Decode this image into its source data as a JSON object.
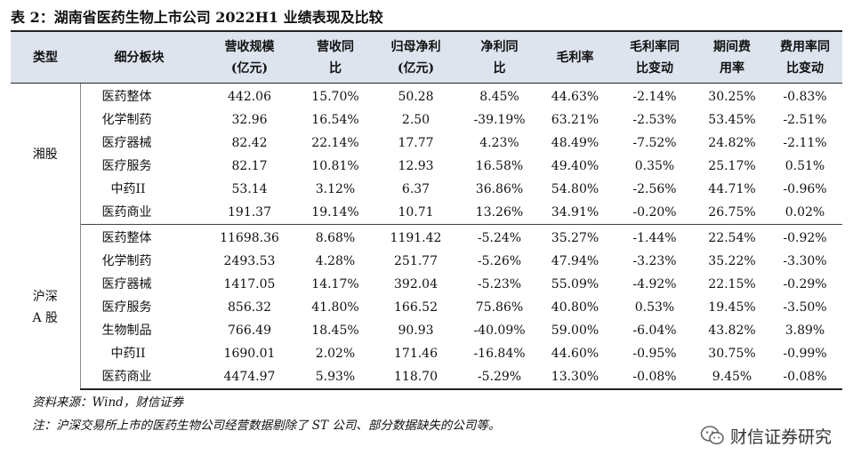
{
  "title": "表 2：湖南省医药生物上市公司 2022H1 业绩表现及比较",
  "headers": [
    [
      "类型"
    ],
    [
      "细分板块"
    ],
    [
      "营收规模",
      "(亿元)"
    ],
    [
      "营收同",
      "比"
    ],
    [
      "归母净利",
      "(亿元)"
    ],
    [
      "净利同",
      "比"
    ],
    [
      "毛利率"
    ],
    [
      "毛利率同",
      "比变动"
    ],
    [
      "期间费",
      "用率"
    ],
    [
      "费用率同",
      "比变动"
    ]
  ],
  "groups": [
    {
      "type_lines": [
        "湘股"
      ],
      "rows": [
        [
          "医药整体",
          "442.06",
          "15.70%",
          "50.28",
          "8.45%",
          "44.63%",
          "-2.14%",
          "30.25%",
          "-0.83%"
        ],
        [
          "化学制药",
          "32.96",
          "16.54%",
          "2.50",
          "-39.19%",
          "63.21%",
          "-2.53%",
          "53.45%",
          "-2.51%"
        ],
        [
          "医疗器械",
          "82.42",
          "22.14%",
          "17.77",
          "4.23%",
          "48.49%",
          "-7.52%",
          "24.82%",
          "-2.11%"
        ],
        [
          "医疗服务",
          "82.17",
          "10.81%",
          "12.93",
          "16.58%",
          "49.40%",
          "0.35%",
          "25.17%",
          "0.51%"
        ],
        [
          "中药II",
          "53.14",
          "3.12%",
          "6.37",
          "36.86%",
          "54.80%",
          "-2.56%",
          "44.71%",
          "-0.96%"
        ],
        [
          "医药商业",
          "191.37",
          "19.14%",
          "10.71",
          "13.26%",
          "34.91%",
          "-0.20%",
          "26.75%",
          "0.02%"
        ]
      ]
    },
    {
      "type_lines": [
        "沪深",
        "A 股"
      ],
      "rows": [
        [
          "医药整体",
          "11698.36",
          "8.68%",
          "1191.42",
          "-5.24%",
          "35.27%",
          "-1.44%",
          "22.54%",
          "-0.92%"
        ],
        [
          "化学制药",
          "2493.53",
          "4.28%",
          "251.77",
          "-5.26%",
          "47.94%",
          "-3.23%",
          "35.22%",
          "-3.30%"
        ],
        [
          "医疗器械",
          "1417.05",
          "14.17%",
          "392.04",
          "-5.23%",
          "55.09%",
          "-4.92%",
          "22.15%",
          "-0.29%"
        ],
        [
          "医疗服务",
          "856.32",
          "41.80%",
          "166.52",
          "75.86%",
          "40.80%",
          "0.53%",
          "19.45%",
          "-3.50%"
        ],
        [
          "生物制品",
          "766.49",
          "18.45%",
          "90.93",
          "-40.09%",
          "59.00%",
          "-6.04%",
          "43.82%",
          "3.89%"
        ],
        [
          "中药II",
          "1690.01",
          "2.02%",
          "171.46",
          "-16.84%",
          "44.60%",
          "-0.95%",
          "30.75%",
          "-0.99%"
        ],
        [
          "医药商业",
          "4474.97",
          "5.93%",
          "118.70",
          "-5.29%",
          "13.30%",
          "-0.08%",
          "9.45%",
          "-0.08%"
        ]
      ]
    }
  ],
  "notes": {
    "source": "资料来源：Wind，财信证券",
    "note": "注：沪深交易所上市的医药生物公司经营数据剔除了 ST 公司、部分数据缺失的公司等。"
  },
  "watermark": {
    "icon": "wechat-icon",
    "text": "财信证券研究"
  }
}
